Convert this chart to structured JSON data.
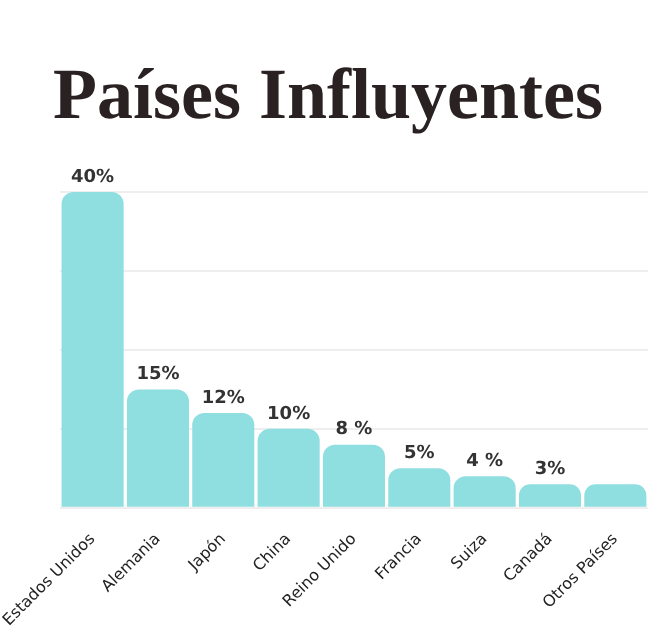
{
  "chart_data": {
    "type": "bar",
    "title": "Países Influyentes",
    "categories": [
      "Estados Unidos",
      "Alemania",
      "Japón",
      "China",
      "Reino Unido",
      "Francia",
      "Suiza",
      "Canadá",
      "Otros Países"
    ],
    "values": [
      40,
      15,
      12,
      10,
      8,
      5,
      4,
      3,
      3
    ],
    "value_labels": [
      "40%",
      "15%",
      "12%",
      "10%",
      "8 %",
      "5%",
      "4 %",
      "3%",
      null
    ],
    "color": "#8fdee0",
    "ylim": [
      0,
      40
    ],
    "yticks": [
      {
        "value": 0,
        "label": null
      },
      {
        "value": 10,
        "label": null
      },
      {
        "value": 20,
        "label": null
      },
      {
        "value": 30,
        "label": null
      },
      {
        "value": 40,
        "label": null
      }
    ],
    "grid": "y",
    "tick_labels": "x"
  }
}
